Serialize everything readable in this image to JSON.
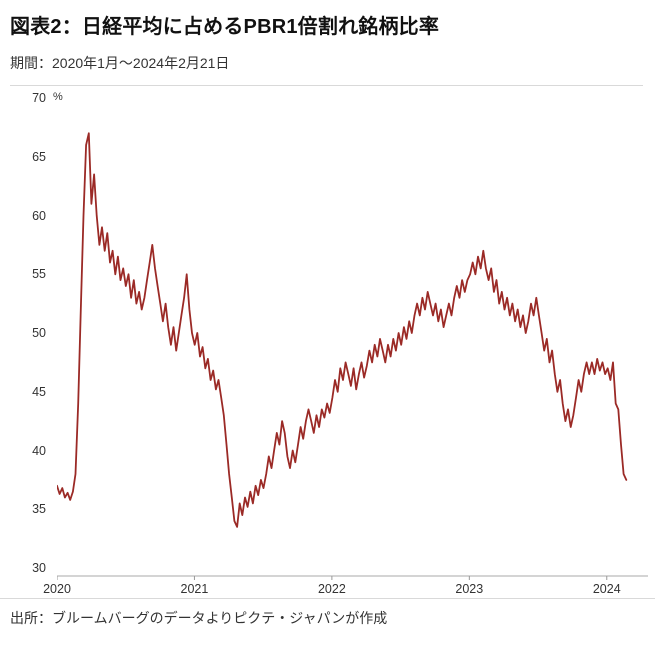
{
  "header": {
    "title": "図表2：日経平均に占めるPBR1倍割れ銘柄比率",
    "period": "期間：2020年1月～2024年2月21日"
  },
  "footer": {
    "source": "出所：ブルームバーグのデータよりピクテ・ジャパンが作成"
  },
  "chart_data": {
    "type": "line",
    "title": "日経平均に占めるPBR1倍割れ銘柄比率",
    "series_name": "PBR1倍割れ銘柄比率",
    "unit": "%",
    "ylabel": "%",
    "xlabel": "",
    "y_range": [
      30,
      70
    ],
    "y_ticks": [
      70,
      65,
      60,
      55,
      50,
      45,
      40,
      35,
      30
    ],
    "x_tick_labels": [
      "2020",
      "2021",
      "2022",
      "2023",
      "2024"
    ],
    "x_tick_years": [
      2020,
      2021,
      2022,
      2023,
      2024
    ],
    "x_domain": [
      2020.0,
      2024.3
    ],
    "x_start": 2020.0,
    "x_end": 2024.142,
    "grid": false,
    "legend": false,
    "line_color": "#9B2A26",
    "values": [
      37.0,
      36.3,
      36.8,
      36.0,
      36.4,
      35.8,
      36.5,
      38.0,
      44.0,
      52.0,
      60.0,
      66.0,
      67.0,
      61.0,
      63.5,
      60.0,
      57.5,
      59.0,
      57.0,
      58.5,
      56.0,
      57.0,
      55.0,
      56.5,
      54.5,
      55.5,
      54.0,
      55.0,
      53.0,
      54.5,
      52.5,
      53.5,
      52.0,
      53.0,
      54.5,
      56.0,
      57.5,
      55.5,
      54.0,
      52.5,
      51.0,
      52.5,
      50.5,
      49.0,
      50.5,
      48.5,
      50.0,
      51.5,
      53.0,
      55.0,
      52.0,
      50.0,
      49.0,
      50.0,
      48.0,
      48.8,
      47.0,
      47.8,
      46.0,
      46.8,
      45.2,
      46.0,
      44.5,
      43.0,
      40.5,
      38.0,
      36.0,
      34.0,
      33.5,
      35.5,
      34.5,
      36.0,
      35.2,
      36.5,
      35.5,
      37.0,
      36.2,
      37.5,
      36.8,
      38.0,
      39.5,
      38.5,
      40.0,
      41.5,
      40.5,
      42.5,
      41.5,
      39.5,
      38.5,
      40.0,
      39.0,
      40.5,
      42.0,
      41.0,
      42.5,
      43.5,
      42.5,
      41.5,
      43.0,
      42.0,
      43.5,
      42.8,
      44.0,
      43.2,
      44.5,
      46.0,
      45.0,
      47.0,
      46.0,
      47.5,
      46.5,
      45.5,
      47.0,
      45.2,
      46.5,
      47.5,
      46.2,
      47.2,
      48.5,
      47.5,
      49.0,
      48.0,
      49.5,
      48.5,
      47.5,
      49.0,
      48.0,
      49.5,
      48.5,
      50.0,
      49.0,
      50.5,
      49.5,
      51.0,
      50.0,
      51.5,
      52.5,
      51.5,
      53.0,
      52.0,
      53.5,
      52.5,
      51.5,
      52.5,
      51.0,
      52.0,
      50.5,
      51.5,
      52.5,
      51.5,
      53.0,
      54.0,
      53.0,
      54.5,
      53.5,
      54.5,
      55.0,
      56.0,
      55.0,
      56.5,
      55.5,
      57.0,
      55.5,
      54.5,
      55.5,
      53.5,
      54.5,
      52.5,
      53.5,
      52.0,
      53.0,
      51.5,
      52.5,
      51.0,
      52.0,
      50.5,
      51.5,
      50.0,
      51.0,
      52.5,
      51.5,
      53.0,
      51.5,
      50.0,
      48.5,
      49.5,
      47.5,
      48.5,
      46.5,
      45.0,
      46.0,
      44.0,
      42.5,
      43.5,
      42.0,
      43.0,
      44.5,
      46.0,
      45.0,
      46.5,
      47.5,
      46.5,
      47.5,
      46.5,
      47.8,
      46.8,
      47.5,
      46.5,
      47.0,
      46.0,
      47.5,
      44.0,
      43.5,
      40.5,
      38.0,
      37.5
    ]
  }
}
